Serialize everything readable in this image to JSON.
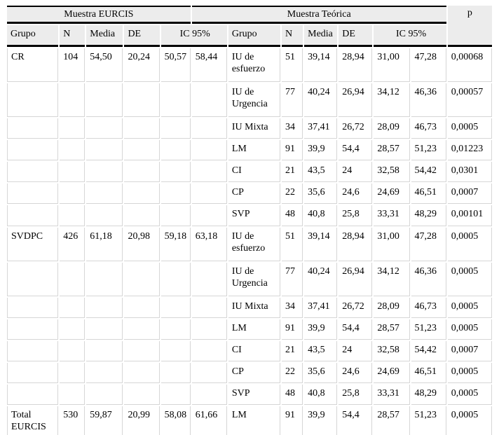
{
  "table": {
    "group_headers": [
      {
        "label": "Muestra EURCIS",
        "colspan": 5
      },
      {
        "label": "Muestra Teórica",
        "colspan": 7
      },
      {
        "label": "p"
      }
    ],
    "col_headers": [
      "Grupo",
      "N",
      "Media",
      "DE",
      "IC 95%",
      "Grupo",
      "N",
      "Media",
      "DE",
      "IC 95%"
    ],
    "rows": [
      [
        "CR",
        "104",
        "54,50",
        "20,24",
        "50,57",
        "58,44",
        "IU de esfuerzo",
        "51",
        "39,14",
        "28,94",
        "31,00",
        "47,28",
        "0,00068"
      ],
      [
        "",
        "",
        "",
        "",
        "",
        "",
        "IU de Urgencia",
        "77",
        "40,24",
        "26,94",
        "34,12",
        "46,36",
        "0,00057"
      ],
      [
        "",
        "",
        "",
        "",
        "",
        "",
        "IU Mixta",
        "34",
        "37,41",
        "26,72",
        "28,09",
        "46,73",
        "0,0005"
      ],
      [
        "",
        "",
        "",
        "",
        "",
        "",
        "LM",
        "91",
        "39,9",
        "54,4",
        "28,57",
        "51,23",
        "0,01223"
      ],
      [
        "",
        "",
        "",
        "",
        "",
        "",
        "CI",
        "21",
        "43,5",
        "24",
        "32,58",
        "54,42",
        "0,0301"
      ],
      [
        "",
        "",
        "",
        "",
        "",
        "",
        "CP",
        "22",
        "35,6",
        "24,6",
        "24,69",
        "46,51",
        "0,0007"
      ],
      [
        "",
        "",
        "",
        "",
        "",
        "",
        "SVP",
        "48",
        "40,8",
        "25,8",
        "33,31",
        "48,29",
        "0,00101"
      ],
      [
        "SVDPC",
        "426",
        "61,18",
        "20,98",
        "59,18",
        "63,18",
        "IU de esfuerzo",
        "51",
        "39,14",
        "28,94",
        "31,00",
        "47,28",
        "0,0005"
      ],
      [
        "",
        "",
        "",
        "",
        "",
        "",
        "IU de Urgencia",
        "77",
        "40,24",
        "26,94",
        "34,12",
        "46,36",
        "0,0005"
      ],
      [
        "",
        "",
        "",
        "",
        "",
        "",
        "IU Mixta",
        "34",
        "37,41",
        "26,72",
        "28,09",
        "46,73",
        "0,0005"
      ],
      [
        "",
        "",
        "",
        "",
        "",
        "",
        "LM",
        "91",
        "39,9",
        "54,4",
        "28,57",
        "51,23",
        "0,0005"
      ],
      [
        "",
        "",
        "",
        "",
        "",
        "",
        "CI",
        "21",
        "43,5",
        "24",
        "32,58",
        "54,42",
        "0,0007"
      ],
      [
        "",
        "",
        "",
        "",
        "",
        "",
        "CP",
        "22",
        "35,6",
        "24,6",
        "24,69",
        "46,51",
        "0,0005"
      ],
      [
        "",
        "",
        "",
        "",
        "",
        "",
        "SVP",
        "48",
        "40,8",
        "25,8",
        "33,31",
        "48,29",
        "0,0005"
      ],
      [
        "Total EURCIS",
        "530",
        "59,87",
        "20,99",
        "58,08",
        "61,66",
        "LM",
        "91",
        "39,9",
        "54,4",
        "28,57",
        "51,23",
        "0,0005"
      ]
    ],
    "tall_row_indexes": [
      0,
      1,
      7,
      8,
      14
    ],
    "colors": {
      "header_bg": "#ececec",
      "rule_color": "#000000",
      "grid_color": "#d6d6d6",
      "text_color": "#000000",
      "page_bg": "#ffffff"
    }
  }
}
